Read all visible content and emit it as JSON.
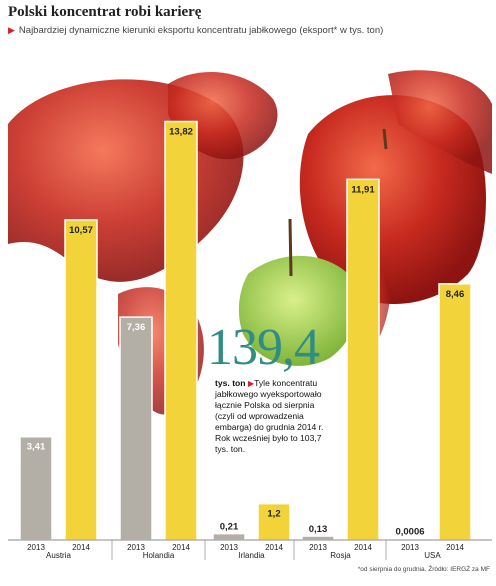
{
  "title": "Polski koncentrat robi karierę",
  "subtitle": "Najbardziej dynamiczne kierunki eksportu koncentratu jabłkowego (eksport* w tys. ton)",
  "highlight": {
    "value": "139,4",
    "unit": "tys. ton",
    "text": "Tyle koncentratu jabłkowego wyeksportowało łącznie Polska od sierpnia (czyli od wprowadzenia embarga) do grudnia 2014 r. Rok wcześniej było to 103,7 tys. ton."
  },
  "footnote": "*od sierpnia do grudnia. Źródło: IERGŻ za MF",
  "colors": {
    "bar_2013": "#b3aea6",
    "bar_2014": "#f2d33a",
    "accent": "#2f8d84",
    "marker": "#d8202a"
  },
  "chart_data": {
    "type": "bar",
    "title": "Polski koncentrat robi karierę",
    "categories": [
      "Austria",
      "Holandia",
      "Irlandia",
      "Rosja",
      "USA"
    ],
    "x_labels": [
      "2013",
      "2014"
    ],
    "series": [
      {
        "name": "2013",
        "values": [
          3.41,
          7.36,
          0.21,
          0.13,
          0.0006
        ],
        "labels": [
          "3,41",
          "7,36",
          "0,21",
          "0,13",
          "0,0006"
        ]
      },
      {
        "name": "2014",
        "values": [
          10.57,
          13.82,
          1.2,
          11.91,
          8.46
        ],
        "labels": [
          "10,57",
          "13,82",
          "1,2",
          "11,91",
          "8,46"
        ]
      }
    ],
    "ylim": [
      0,
      14.2
    ]
  }
}
